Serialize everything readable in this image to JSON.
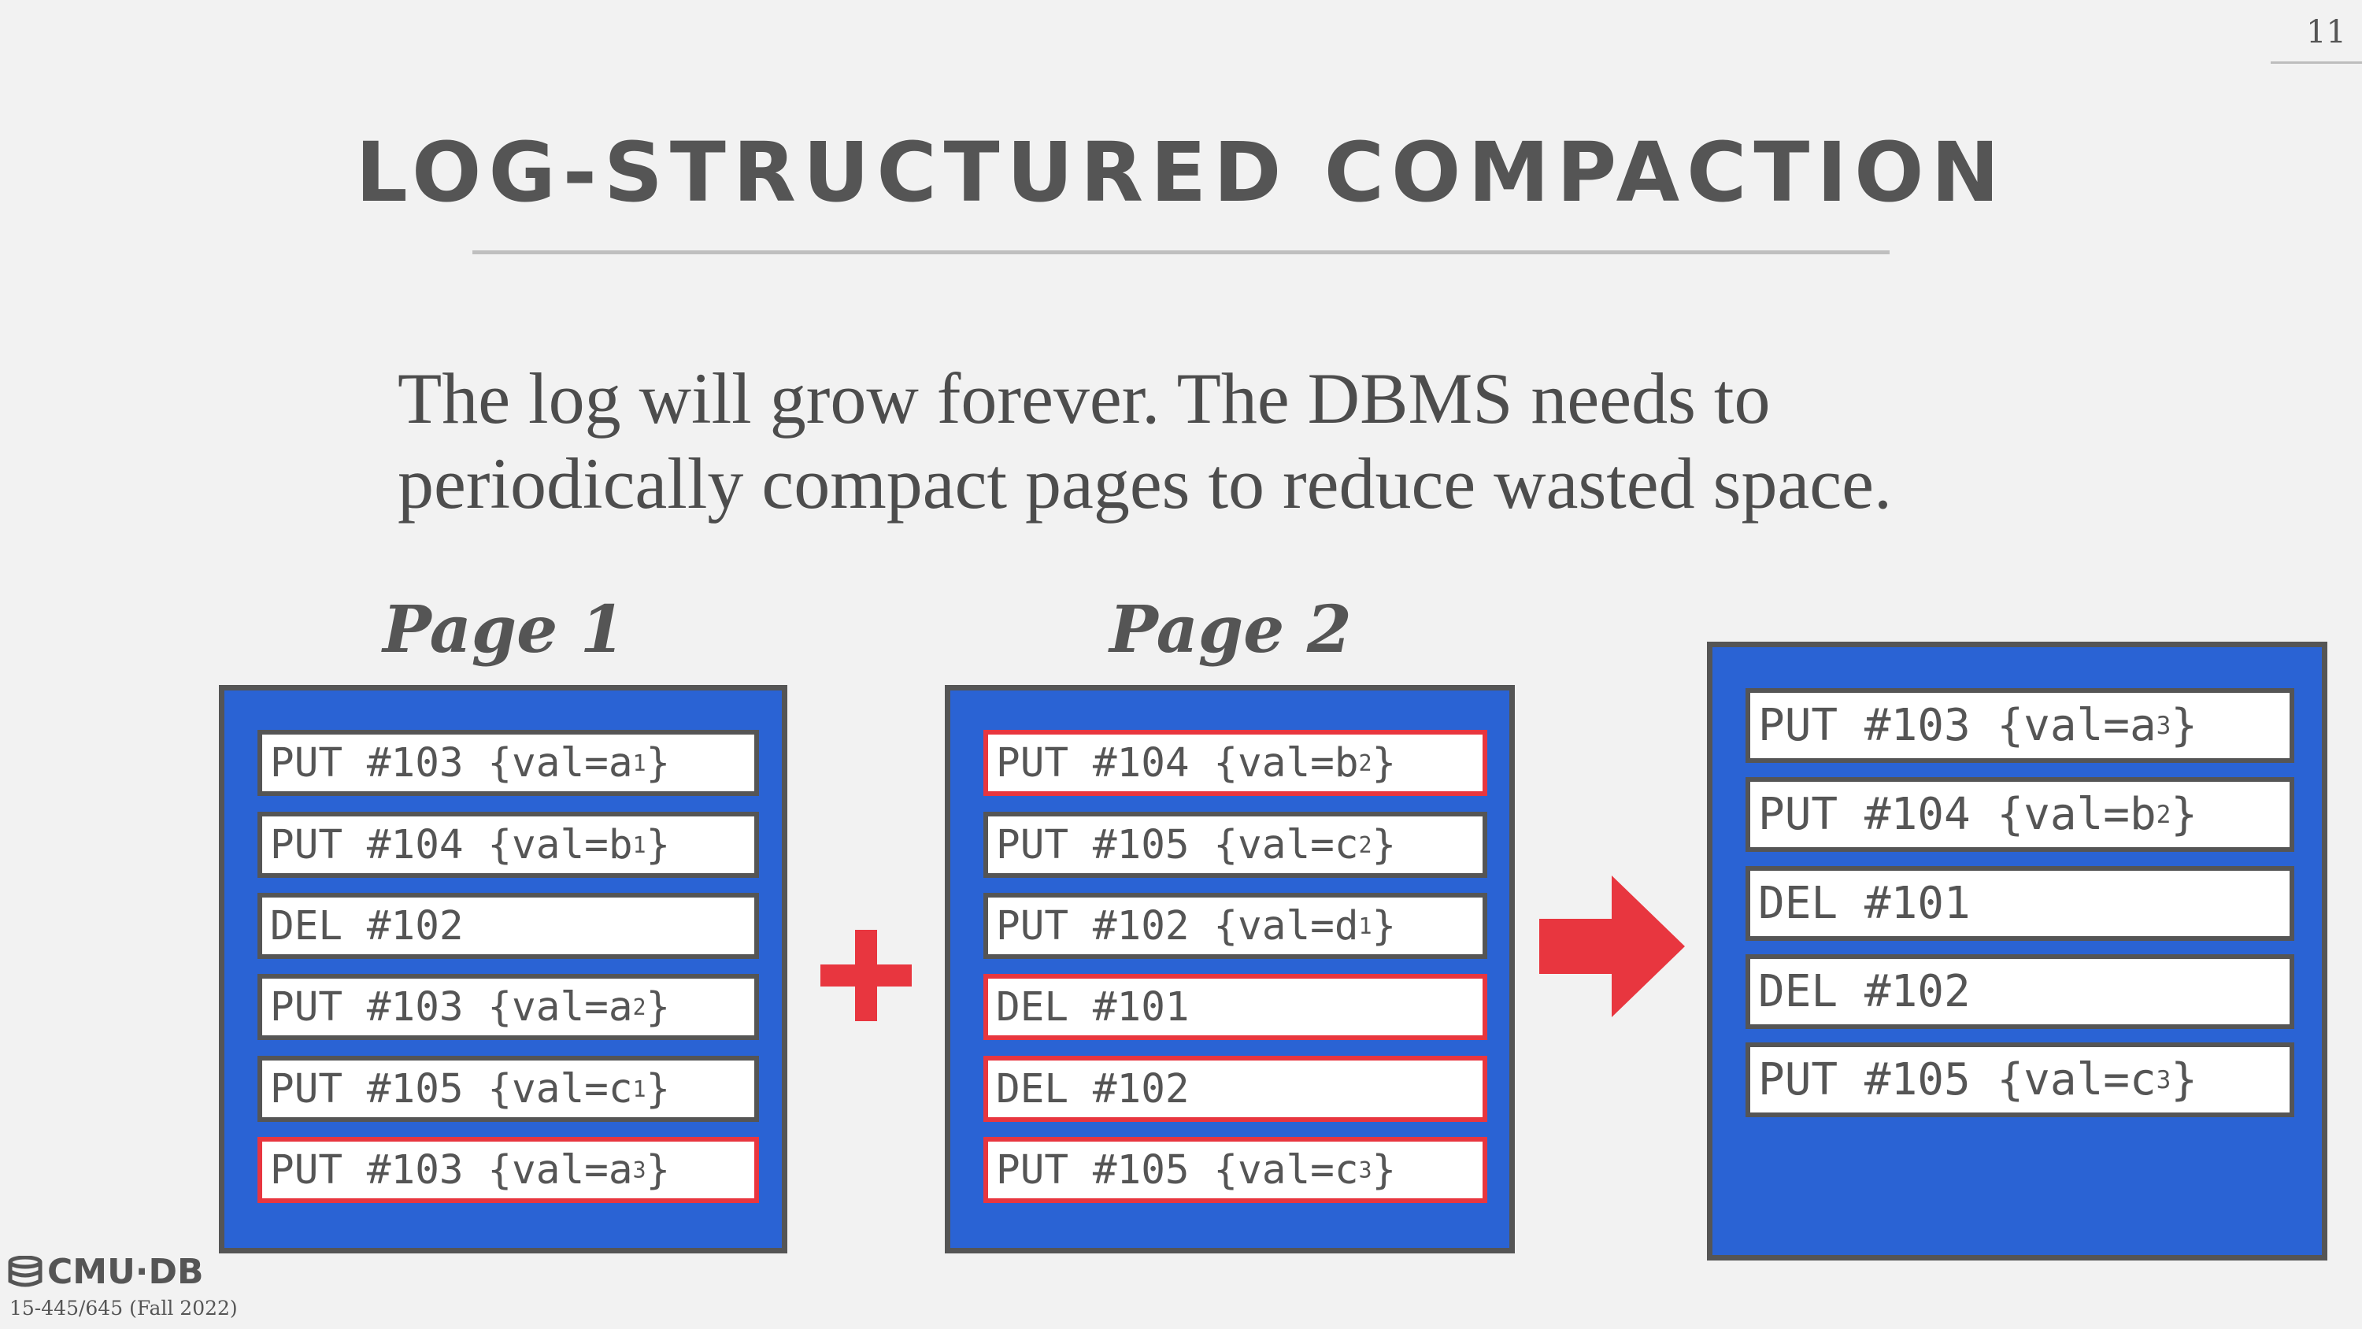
{
  "slide_number": "11",
  "title": "LOG-STRUCTURED COMPACTION",
  "body": {
    "line1": "The log will grow forever. The DBMS needs to",
    "line2": "periodically compact pages to reduce wasted space."
  },
  "page1": {
    "label": "Page 1",
    "entries": [
      {
        "text": "PUT #103 {val=a",
        "sub": "1",
        "end": "}"
      },
      {
        "text": "PUT #104 {val=b",
        "sub": "1",
        "end": "}"
      },
      {
        "text": "DEL #102",
        "sub": "",
        "end": ""
      },
      {
        "text": "PUT #103 {val=a",
        "sub": "2",
        "end": "}"
      },
      {
        "text": "PUT #105 {val=c",
        "sub": "1",
        "end": "}"
      },
      {
        "text": "PUT #103 {val=a",
        "sub": "3",
        "end": "}"
      }
    ]
  },
  "page2": {
    "label": "Page 2",
    "entries": [
      {
        "text": "PUT #104 {val=b",
        "sub": "2",
        "end": "}"
      },
      {
        "text": "PUT #105 {val=c",
        "sub": "2",
        "end": "}"
      },
      {
        "text": "PUT #102 {val=d",
        "sub": "1",
        "end": "}"
      },
      {
        "text": "DEL #101",
        "sub": "",
        "end": ""
      },
      {
        "text": "DEL #102",
        "sub": "",
        "end": ""
      },
      {
        "text": "PUT #105 {val=c",
        "sub": "3",
        "end": "}"
      }
    ]
  },
  "result": {
    "entries": [
      {
        "text": "PUT #103 {val=a",
        "sub": "3",
        "end": "}"
      },
      {
        "text": "PUT #104 {val=b",
        "sub": "2",
        "end": "}"
      },
      {
        "text": "DEL #101",
        "sub": "",
        "end": ""
      },
      {
        "text": "DEL #102",
        "sub": "",
        "end": ""
      },
      {
        "text": "PUT #105 {val=c",
        "sub": "3",
        "end": "}"
      }
    ]
  },
  "footer": {
    "logo_text": "CMU·DB",
    "course": "15-445/645 (Fall 2022)"
  },
  "colors": {
    "page_fill": "#2a63d4",
    "highlight": "#e8363f",
    "text_gray": "#555555"
  },
  "icons": [
    "plus-icon",
    "right-arrow-icon",
    "database-logo-icon"
  ]
}
